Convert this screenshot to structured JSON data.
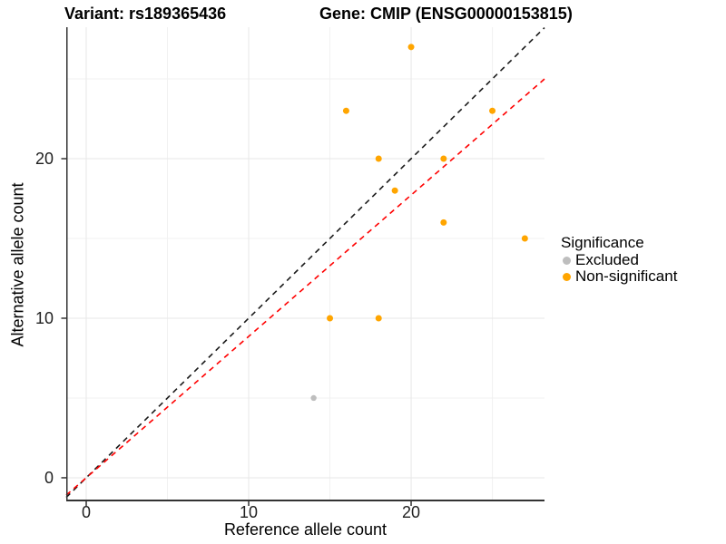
{
  "titles": {
    "variant": "Variant: rs189365436",
    "gene": "Gene: CMIP (ENSG00000153815)"
  },
  "chart_data": {
    "type": "scatter",
    "xlabel": "Reference allele count",
    "ylabel": "Alternative allele count",
    "xlim": [
      -1.23,
      28.21
    ],
    "ylim": [
      -1.48,
      28.24
    ],
    "x_major_ticks": [
      0,
      10,
      20
    ],
    "x_minor_ticks": [
      5,
      15,
      25
    ],
    "y_major_ticks": [
      0,
      10,
      20
    ],
    "y_minor_ticks": [
      5,
      15,
      25
    ],
    "grid": true,
    "legend_position": "right",
    "series": [
      {
        "name": "Excluded",
        "color": "#BEBEBE",
        "point_radius": 3.2,
        "points": [
          [
            14,
            5
          ]
        ]
      },
      {
        "name": "Non-significant",
        "color": "#FFA500",
        "point_radius": 3.5,
        "points": [
          [
            15,
            10
          ],
          [
            16,
            23
          ],
          [
            18,
            10
          ],
          [
            18,
            20
          ],
          [
            19,
            18
          ],
          [
            20,
            27
          ],
          [
            22,
            16
          ],
          [
            22,
            20
          ],
          [
            25,
            23
          ],
          [
            27,
            15
          ]
        ]
      }
    ],
    "lines": [
      {
        "name": "identity-line",
        "color": "#1A1A1A",
        "slope": 1.0,
        "intercept": 0,
        "dash": "6 5"
      },
      {
        "name": "fit-line",
        "color": "#FF0000",
        "slope": 0.886,
        "intercept": 0,
        "dash": "6 5"
      }
    ]
  },
  "legend": {
    "title": "Significance",
    "entries": [
      {
        "label": "Excluded",
        "color": "#BEBEBE"
      },
      {
        "label": "Non-significant",
        "color": "#FFA500"
      }
    ]
  },
  "colors": {
    "background": "#FFFFFF",
    "grid_major": "#E7E7E7",
    "grid_minor": "#F1F1F1",
    "axis_line": "#333333",
    "tick_mark": "#333333",
    "tick_text": "#1F1F1F"
  }
}
